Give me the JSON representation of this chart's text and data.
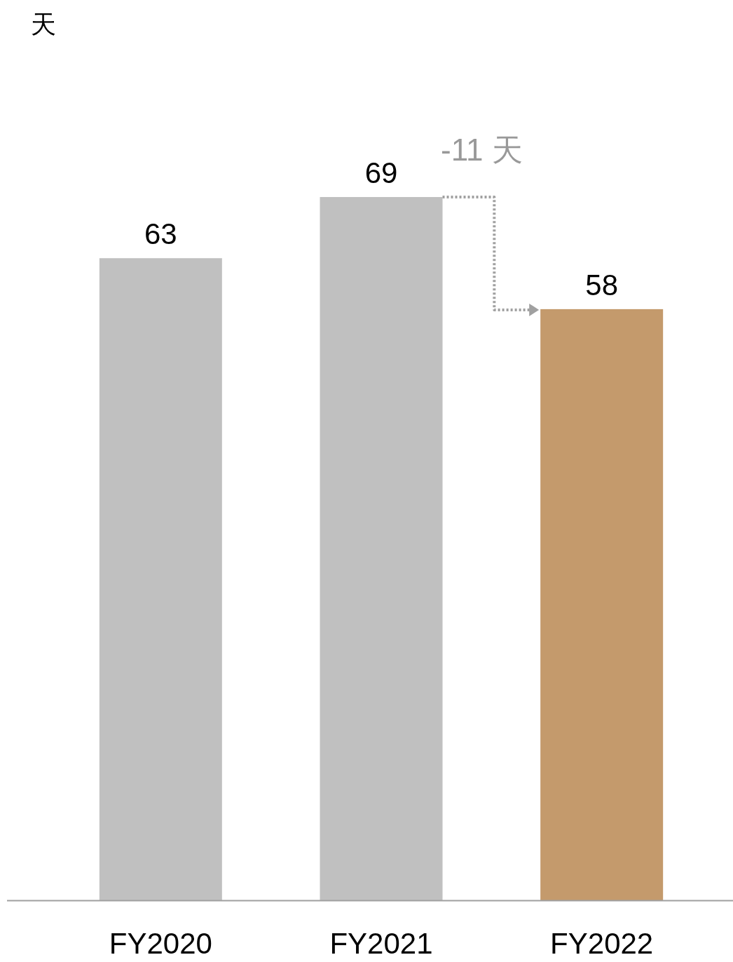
{
  "chart_data": {
    "type": "bar",
    "categories": [
      "FY2020",
      "FY2021",
      "FY2022"
    ],
    "values": [
      63,
      69,
      58
    ],
    "colors": [
      "#c0c0c0",
      "#c0c0c0",
      "#c49a6c"
    ],
    "data_labels": true,
    "annotations": [
      "天",
      "-11 天"
    ]
  }
}
